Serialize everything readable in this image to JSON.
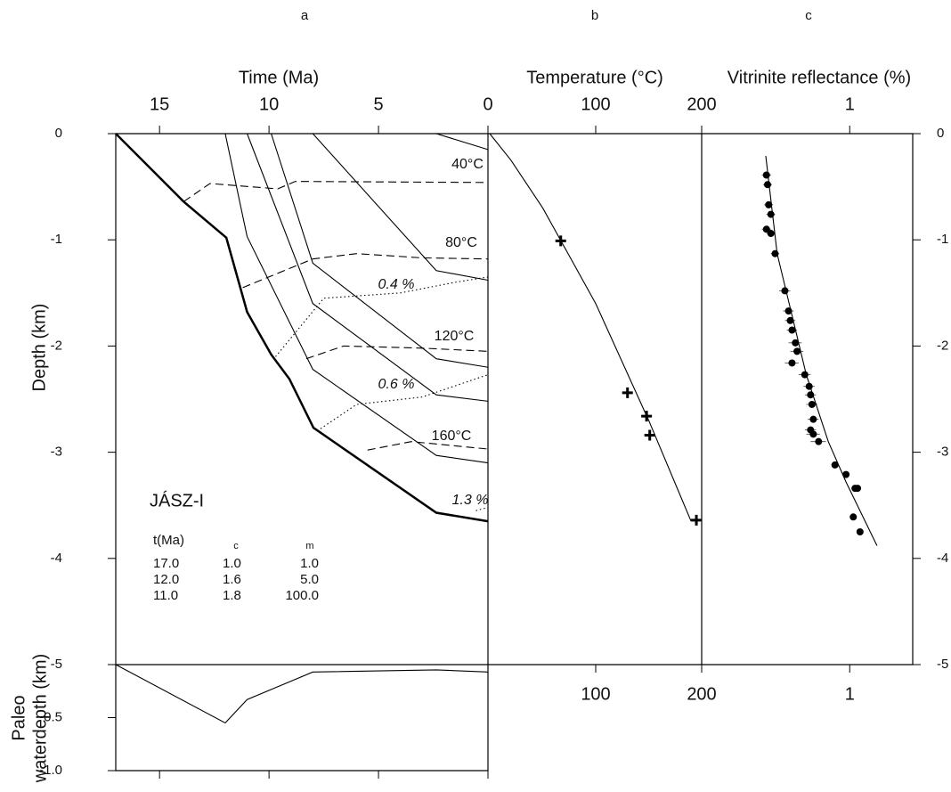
{
  "panel_labels": [
    "a",
    "b",
    "c"
  ],
  "well_name": "JÁSZ-I",
  "table": {
    "header": [
      "t(Ma)",
      "c",
      "m"
    ],
    "rows": [
      [
        "17.0",
        "1.0",
        "1.0"
      ],
      [
        "12.0",
        "1.6",
        "5.0"
      ],
      [
        "11.0",
        "1.8",
        "100.0"
      ]
    ]
  },
  "chart_data": [
    {
      "type": "line",
      "xlabel": "Time (Ma)",
      "ylabel": "Depth (km)",
      "xlim": [
        17,
        0
      ],
      "ylim": [
        -5,
        0
      ],
      "xticks": [
        15,
        10,
        5,
        0
      ],
      "yticks": [
        0,
        -1,
        -2,
        -3,
        -4,
        -5
      ],
      "series": [
        {
          "style": "bold",
          "x": [
            17,
            13.9,
            11.95,
            11.0,
            9.9,
            9.07,
            7.97,
            2.36,
            0
          ],
          "values": [
            0,
            -0.64,
            -0.98,
            -1.68,
            -2.08,
            -2.31,
            -2.77,
            -3.57,
            -3.65
          ]
        },
        {
          "style": "thin",
          "x": [
            2.36,
            0
          ],
          "values": [
            0,
            -0.15
          ]
        },
        {
          "style": "thin",
          "x": [
            8,
            2.36,
            0
          ],
          "values": [
            0,
            -1.29,
            -1.38
          ]
        },
        {
          "style": "thin",
          "x": [
            9.9,
            8,
            2.36,
            0
          ],
          "values": [
            0,
            -1.22,
            -2.12,
            -2.2
          ]
        },
        {
          "style": "thin",
          "x": [
            11,
            8,
            2.36,
            0
          ],
          "values": [
            0,
            -1.6,
            -2.46,
            -2.52
          ]
        },
        {
          "style": "thin",
          "x": [
            12,
            11,
            8,
            2.36,
            0
          ],
          "values": [
            0,
            -0.97,
            -2.22,
            -3.03,
            -3.1
          ]
        },
        {
          "style": "dashed",
          "label": "40°C",
          "x": [
            13.9,
            12.7,
            9.6,
            8.8,
            0
          ],
          "values": [
            -0.64,
            -0.47,
            -0.52,
            -0.45,
            -0.46
          ]
        },
        {
          "style": "dashed",
          "label": "80°C",
          "x": [
            11.2,
            8,
            6,
            3,
            0
          ],
          "values": [
            -1.45,
            -1.18,
            -1.13,
            -1.17,
            -1.18
          ]
        },
        {
          "style": "dashed",
          "label": "120°C",
          "x": [
            8.3,
            6.6,
            3,
            0
          ],
          "values": [
            -2.12,
            -2.0,
            -2.02,
            -2.05
          ]
        },
        {
          "style": "dashed",
          "label": "160°C",
          "x": [
            5.5,
            3.5,
            0
          ],
          "values": [
            -2.98,
            -2.9,
            -2.97
          ]
        },
        {
          "style": "dotted",
          "label": "0.4 %",
          "x": [
            9.7,
            7.5,
            4,
            1.5,
            0
          ],
          "values": [
            -2.1,
            -1.55,
            -1.5,
            -1.4,
            -1.35
          ]
        },
        {
          "style": "dotted",
          "label": "0.6 %",
          "x": [
            7.8,
            6,
            3,
            0
          ],
          "values": [
            -2.8,
            -2.55,
            -2.48,
            -2.27
          ]
        },
        {
          "style": "dotted",
          "label": "1.3 %",
          "x": [
            0.55,
            0
          ],
          "values": [
            -3.55,
            -3.52
          ]
        }
      ]
    },
    {
      "type": "line",
      "xlabel": "Temperature (°C)",
      "xlim": [
        0,
        200
      ],
      "ylim": [
        -5,
        0
      ],
      "xticks": [
        100,
        200
      ],
      "series": [
        {
          "style": "thin",
          "x": [
            0,
            20,
            50,
            100,
            150,
            190
          ],
          "values": [
            0,
            -0.25,
            -0.7,
            -1.6,
            -2.7,
            -3.65
          ]
        },
        {
          "style": "plus",
          "x": [
            67,
            130,
            148,
            151,
            195
          ],
          "values": [
            -1.01,
            -2.44,
            -2.66,
            -2.84,
            -3.64
          ]
        }
      ]
    },
    {
      "type": "scatter",
      "xlabel": "Vitrinite reflectance (%)",
      "xscale": "log",
      "xlim": [
        0.2,
        2
      ],
      "ylim": [
        -5,
        0
      ],
      "xticks": [
        1
      ],
      "yticks": [
        0,
        -1,
        -2,
        -3,
        -4,
        -5
      ],
      "series": [
        {
          "style": "point",
          "x": [
            0.4,
            0.405,
            0.41,
            0.42,
            0.4,
            0.42,
            0.44,
            0.49,
            0.51,
            0.52,
            0.53,
            0.55,
            0.56,
            0.53,
            0.61,
            0.64,
            0.65,
            0.66,
            0.67,
            0.65,
            0.67,
            0.71,
            0.85,
            0.96,
            1.06,
            1.09,
            1.04,
            1.12
          ],
          "values": [
            -0.39,
            -0.48,
            -0.67,
            -0.76,
            -0.9,
            -0.94,
            -1.13,
            -1.48,
            -1.67,
            -1.76,
            -1.85,
            -1.97,
            -2.05,
            -2.16,
            -2.27,
            -2.38,
            -2.46,
            -2.55,
            -2.69,
            -2.79,
            -2.83,
            -2.9,
            -3.12,
            -3.21,
            -3.34,
            -3.34,
            -3.61,
            -3.75
          ],
          "xerr": [
            0.02,
            0.02,
            0.02,
            0.02,
            0.02,
            0.02,
            0.02,
            0.03,
            0.03,
            0.03,
            0.03,
            0.04,
            0.04,
            0.04,
            0.04,
            0.04,
            0.04,
            0.04,
            0.04,
            0.04,
            0.05,
            0.06,
            0.03,
            0.03,
            0.04,
            0.04,
            0.02,
            0.02
          ]
        },
        {
          "style": "thin",
          "x": [
            0.397,
            0.45,
            0.62,
            0.79,
            0.96,
            1.35
          ],
          "values": [
            -0.21,
            -1.13,
            -2.27,
            -2.9,
            -3.28,
            -3.88
          ]
        }
      ]
    },
    {
      "type": "line",
      "ylabel": [
        "Paleo",
        "waterdepth (km)"
      ],
      "xlim": [
        17,
        0
      ],
      "ylim": [
        -1,
        0
      ],
      "xticks": [
        15,
        10,
        5,
        0
      ],
      "yticks": [
        -0.5,
        {
          "value": -1,
          "label": "-1.0"
        }
      ],
      "series": [
        {
          "style": "thin",
          "x": [
            17,
            12,
            11,
            8,
            2.36,
            0
          ],
          "values": [
            0,
            -0.55,
            -0.33,
            -0.07,
            -0.05,
            -0.07
          ]
        }
      ]
    }
  ]
}
